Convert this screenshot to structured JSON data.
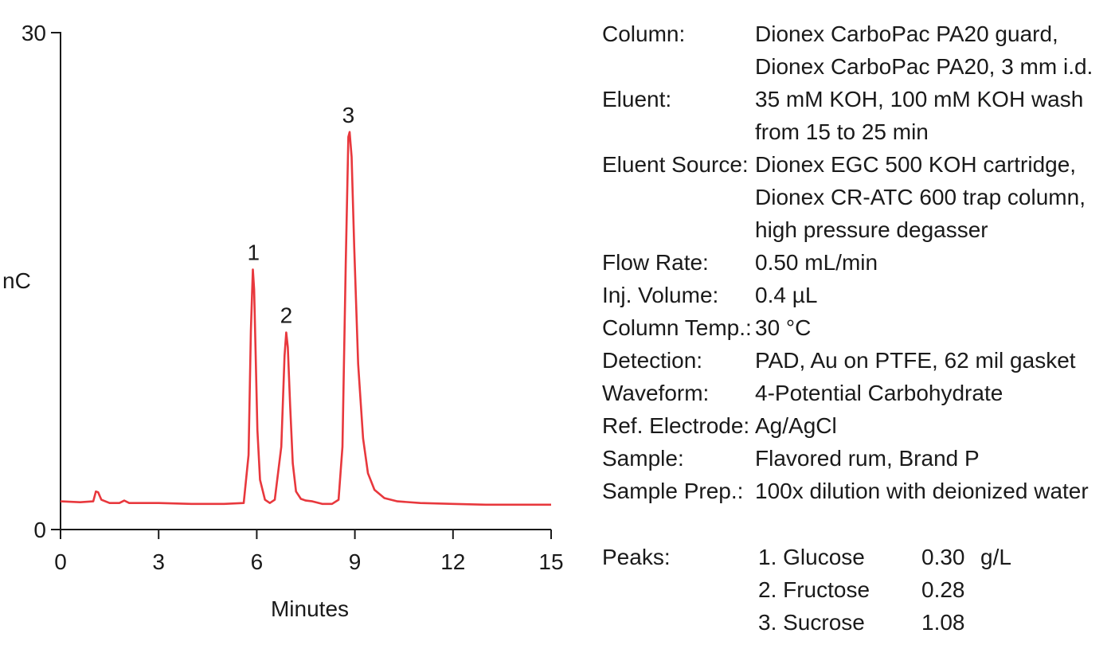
{
  "chart_data": {
    "type": "line",
    "title": "",
    "xlabel": "Minutes",
    "ylabel": "nC",
    "xlim": [
      0,
      15
    ],
    "ylim": [
      0,
      30
    ],
    "xticks": [
      "0",
      "3",
      "6",
      "9",
      "12",
      "15"
    ],
    "yticks": [
      "0",
      "30"
    ],
    "line_color": "#e8383d",
    "series": [
      {
        "x": [
          0,
          0.6,
          1.0,
          1.08,
          1.15,
          1.25,
          1.5,
          1.8,
          1.95,
          2.1,
          3.0,
          4.0,
          5.0,
          5.6,
          5.75,
          5.82,
          5.88,
          5.92,
          5.96,
          6.02,
          6.1,
          6.25,
          6.4,
          6.55,
          6.75,
          6.85,
          6.9,
          6.95,
          7.02,
          7.1,
          7.2,
          7.35,
          7.5,
          7.7,
          8.0,
          8.3,
          8.5,
          8.62,
          8.72,
          8.8,
          8.84,
          8.9,
          8.98,
          9.1,
          9.25,
          9.4,
          9.6,
          9.9,
          10.3,
          11.0,
          12.0,
          13.0,
          14.0,
          15.0
        ],
        "y": [
          1.7,
          1.65,
          1.7,
          2.3,
          2.25,
          1.8,
          1.6,
          1.6,
          1.75,
          1.6,
          1.6,
          1.55,
          1.55,
          1.6,
          4.5,
          12.0,
          15.7,
          14.5,
          11.0,
          6.0,
          3.0,
          1.8,
          1.6,
          1.8,
          5.0,
          10.5,
          11.9,
          11.0,
          7.5,
          4.0,
          2.3,
          1.85,
          1.75,
          1.7,
          1.55,
          1.55,
          1.8,
          5.0,
          16.0,
          23.7,
          24.0,
          22.5,
          17.0,
          10.0,
          5.5,
          3.4,
          2.4,
          1.9,
          1.7,
          1.6,
          1.55,
          1.5,
          1.5,
          1.5
        ]
      }
    ],
    "annotations": [
      {
        "text": "1",
        "x": 5.9,
        "y": 15.7
      },
      {
        "text": "2",
        "x": 6.9,
        "y": 11.9
      },
      {
        "text": "3",
        "x": 8.8,
        "y": 24.0
      }
    ]
  },
  "conditions": [
    {
      "label": "Column:",
      "value": "Dionex CarboPac PA20 guard,"
    },
    {
      "label": "",
      "value": "Dionex CarboPac PA20, 3 mm i.d."
    },
    {
      "label": "Eluent:",
      "value": "35 mM KOH, 100 mM KOH wash"
    },
    {
      "label": "",
      "value": "from 15 to 25 min"
    },
    {
      "label": "Eluent Source:",
      "value": "Dionex EGC 500 KOH cartridge,"
    },
    {
      "label": "",
      "value": "Dionex CR-ATC 600 trap column,"
    },
    {
      "label": "",
      "value": "high pressure degasser"
    },
    {
      "label": "Flow Rate:",
      "value": "0.50 mL/min"
    },
    {
      "label": "Inj. Volume:",
      "value": "0.4 µL"
    },
    {
      "label": "Column Temp.:",
      "value": "30 °C"
    },
    {
      "label": "Detection:",
      "value": "PAD, Au on PTFE, 62 mil gasket"
    },
    {
      "label": "Waveform:",
      "value": "4-Potential Carbohydrate"
    },
    {
      "label": "Ref. Electrode:",
      "value": "Ag/AgCl"
    },
    {
      "label": "Sample:",
      "value": "Flavored rum, Brand P"
    },
    {
      "label": "Sample Prep.:",
      "value": "100x dilution with deionized water"
    }
  ],
  "peaks": {
    "label": "Peaks:",
    "unit": "g/L",
    "items": [
      {
        "name": "1. Glucose",
        "conc": "0.30"
      },
      {
        "name": "2. Fructose",
        "conc": "0.28"
      },
      {
        "name": "3. Sucrose",
        "conc": "1.08"
      }
    ]
  }
}
